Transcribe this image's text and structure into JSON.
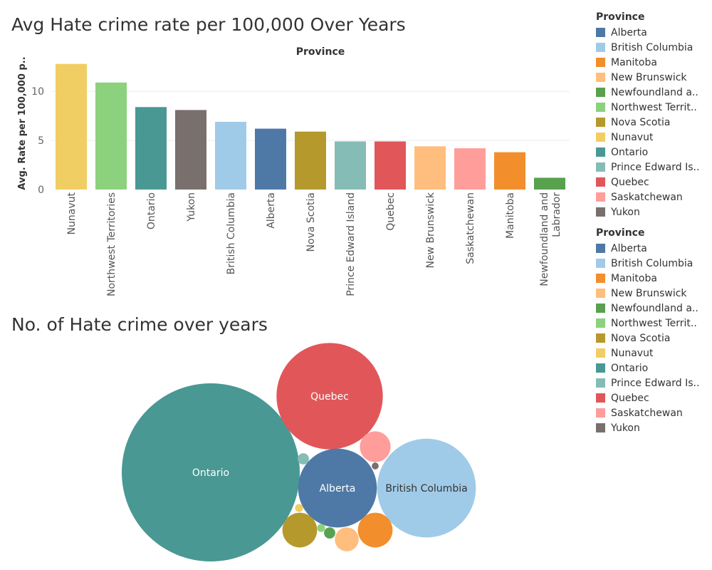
{
  "titles": {
    "bar": "Avg Hate crime rate per 100,000 Over Years",
    "bubble": "No. of Hate crime over years"
  },
  "legends": [
    {
      "title": "Province",
      "items": [
        {
          "label": "Alberta",
          "color": "#4e79a7"
        },
        {
          "label": "British Columbia",
          "color": "#a0cbe8"
        },
        {
          "label": "Manitoba",
          "color": "#f28e2b"
        },
        {
          "label": "New Brunswick",
          "color": "#ffbe7d"
        },
        {
          "label": "Newfoundland a..",
          "color": "#59a14f"
        },
        {
          "label": "Northwest Territ..",
          "color": "#8cd17d"
        },
        {
          "label": "Nova Scotia",
          "color": "#b6992d"
        },
        {
          "label": "Nunavut",
          "color": "#f1ce63"
        },
        {
          "label": "Ontario",
          "color": "#499894"
        },
        {
          "label": "Prince Edward Is..",
          "color": "#86bcb6"
        },
        {
          "label": "Quebec",
          "color": "#e15759"
        },
        {
          "label": "Saskatchewan",
          "color": "#ff9d9a"
        },
        {
          "label": "Yukon",
          "color": "#79706e"
        }
      ]
    },
    {
      "title": "Province",
      "items": [
        {
          "label": "Alberta",
          "color": "#4e79a7"
        },
        {
          "label": "British Columbia",
          "color": "#a0cbe8"
        },
        {
          "label": "Manitoba",
          "color": "#f28e2b"
        },
        {
          "label": "New Brunswick",
          "color": "#ffbe7d"
        },
        {
          "label": "Newfoundland a..",
          "color": "#59a14f"
        },
        {
          "label": "Northwest Territ..",
          "color": "#8cd17d"
        },
        {
          "label": "Nova Scotia",
          "color": "#b6992d"
        },
        {
          "label": "Nunavut",
          "color": "#f1ce63"
        },
        {
          "label": "Ontario",
          "color": "#499894"
        },
        {
          "label": "Prince Edward Is..",
          "color": "#86bcb6"
        },
        {
          "label": "Quebec",
          "color": "#e15759"
        },
        {
          "label": "Saskatchewan",
          "color": "#ff9d9a"
        },
        {
          "label": "Yukon",
          "color": "#79706e"
        }
      ]
    }
  ],
  "chart_data": [
    {
      "type": "bar",
      "title": "Avg Hate crime rate per 100,000 Over Years",
      "column_header": "Province",
      "ylabel": "Avg. Rate per 100,000 p..",
      "ylim": [
        0,
        13.5
      ],
      "yticks": [
        0,
        5,
        10
      ],
      "grid": true,
      "categories": [
        "Nunavut",
        "Northwest Territories",
        "Ontario",
        "Yukon",
        "British Columbia",
        "Alberta",
        "Nova Scotia",
        "Prince Edward Island",
        "Quebec",
        "New Brunswick",
        "Saskatchewan",
        "Manitoba",
        "Newfoundland and Labrador"
      ],
      "values": [
        12.8,
        10.9,
        8.4,
        8.1,
        6.9,
        6.2,
        5.9,
        4.9,
        4.9,
        4.4,
        4.2,
        3.8,
        1.2
      ],
      "colors": [
        "#f1ce63",
        "#8cd17d",
        "#499894",
        "#79706e",
        "#a0cbe8",
        "#4e79a7",
        "#b6992d",
        "#86bcb6",
        "#e15759",
        "#ffbe7d",
        "#ff9d9a",
        "#f28e2b",
        "#59a14f"
      ]
    },
    {
      "type": "bubble",
      "title": "No. of Hate crime over years",
      "items": [
        {
          "province": "Ontario",
          "label": "Ontario",
          "value": 100,
          "color": "#499894",
          "label_color": "#ffffff"
        },
        {
          "province": "Quebec",
          "label": "Quebec",
          "value": 35.7,
          "color": "#e15759",
          "label_color": "#ffffff"
        },
        {
          "province": "British Columbia",
          "label": "British Columbia",
          "value": 30.8,
          "color": "#a0cbe8",
          "label_color": "#333333"
        },
        {
          "province": "Alberta",
          "label": "Alberta",
          "value": 19.6,
          "color": "#4e79a7",
          "label_color": "#ffffff"
        },
        {
          "province": "Saskatchewan",
          "label": "",
          "value": 3.0,
          "color": "#ff9d9a",
          "label_color": "#333333"
        },
        {
          "province": "Manitoba",
          "label": "",
          "value": 3.8,
          "color": "#f28e2b",
          "label_color": "#333333"
        },
        {
          "province": "Nova Scotia",
          "label": "",
          "value": 3.8,
          "color": "#b6992d",
          "label_color": "#333333"
        },
        {
          "province": "New Brunswick",
          "label": "",
          "value": 1.8,
          "color": "#ffbe7d",
          "label_color": "#333333"
        },
        {
          "province": "Prince Edward Island",
          "label": "",
          "value": 0.4,
          "color": "#86bcb6",
          "label_color": "#333333"
        },
        {
          "province": "Newfoundland and Labrador",
          "label": "",
          "value": 0.4,
          "color": "#59a14f",
          "label_color": "#333333"
        },
        {
          "province": "Nunavut",
          "label": "",
          "value": 0.2,
          "color": "#f1ce63",
          "label_color": "#333333"
        },
        {
          "province": "Northwest Territories",
          "label": "",
          "value": 0.2,
          "color": "#8cd17d",
          "label_color": "#333333"
        },
        {
          "province": "Yukon",
          "label": "",
          "value": 0.15,
          "color": "#79706e",
          "label_color": "#333333"
        }
      ]
    }
  ]
}
